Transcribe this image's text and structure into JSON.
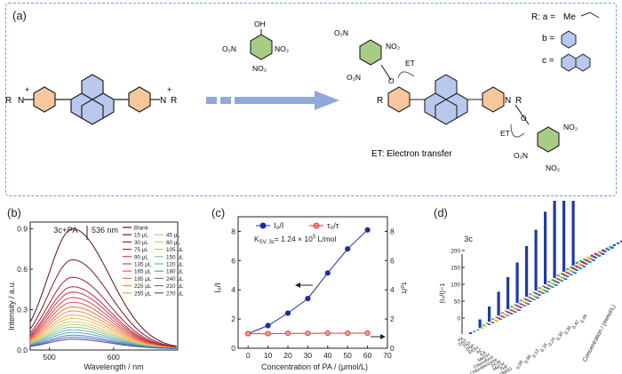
{
  "scheme": {
    "label": "(a)",
    "legend_title": "R: a =",
    "legend_a": "Me",
    "legend_b": "b =",
    "legend_c": "c =",
    "et_label": "ET",
    "et_caption": "ET:  Electron transfer",
    "r_label": "R",
    "n_label": "N",
    "plus": "+",
    "minus": "−",
    "oh": "OH",
    "no2": "NO₂",
    "o2n": "O₂N",
    "o": "O"
  },
  "panel_b": {
    "label": "(b)",
    "sample": "3c+PA",
    "peak_label": "536 nm",
    "legend_col1": [
      "Blank",
      "15 μL",
      "30 μL",
      "75 μL",
      "90 μL",
      "135 μL",
      "165 μL",
      "195 μL",
      "225 μL",
      "255 μL"
    ],
    "legend_col2": [
      "45 μL",
      "60 μL",
      "105 μL",
      "150 μL",
      "120 μL",
      "180 μL",
      "240 μL",
      "210 μL",
      "270 μL"
    ],
    "colors": [
      "#5a0f1a",
      "#7a1628",
      "#9a1f33",
      "#b52b3c",
      "#c9364a",
      "#d5434f",
      "#e2584f",
      "#ec6f4a",
      "#f28b4b",
      "#f5a24f",
      "#f2bb5c",
      "#d9c96a",
      "#b5cf7c",
      "#8dc39a",
      "#6bb4ae",
      "#5aa0c2",
      "#5a86c8",
      "#5f6cc4",
      "#4b4f9c"
    ],
    "chart_data": {
      "type": "line",
      "title": "3c+PA",
      "xlabel": "Wavelength / nm",
      "ylabel": "Intensity / a.u.",
      "xlim": [
        470,
        700
      ],
      "ylim": [
        0,
        0.95
      ],
      "xticks": [
        "500",
        "600"
      ],
      "yticks": [
        "0.0",
        "0.3",
        "0.6",
        "0.9"
      ],
      "peak_x": 536,
      "series_peaks": [
        0.89,
        0.66,
        0.53,
        0.46,
        0.42,
        0.38,
        0.345,
        0.31,
        0.28,
        0.25,
        0.225,
        0.2,
        0.18,
        0.16,
        0.14,
        0.12,
        0.1,
        0.085,
        0.07
      ]
    }
  },
  "panel_c": {
    "label": "(c)",
    "series1_label": "I₀/I",
    "series2_label": "τ₀/τ",
    "ksv_label": "K",
    "ksv_sub": "SV, 3c",
    "ksv_value": "= 1.24  × 10",
    "ksv_exp": "5",
    "ksv_unit": " L/mol",
    "chart_data": {
      "type": "line",
      "xlabel": "Concentration of PA / (μmol/L)",
      "ylabel_left": "I₀/I",
      "ylabel_right": "τ₀/τ",
      "xlim": [
        -5,
        70
      ],
      "ylim": [
        0,
        9
      ],
      "xticks": [
        0,
        10,
        20,
        30,
        40,
        50,
        60,
        70
      ],
      "yticks": [
        0,
        2,
        4,
        6,
        8
      ],
      "x": [
        0,
        10,
        20,
        30,
        40,
        50,
        60
      ],
      "series": [
        {
          "name": "I₀/I",
          "color": "#1f2e9c",
          "values": [
            1.0,
            1.55,
            2.4,
            3.4,
            5.15,
            6.8,
            8.1
          ]
        },
        {
          "name": "τ₀/τ",
          "color": "#e03a3a",
          "values": [
            1.0,
            1.0,
            1.02,
            1.02,
            1.03,
            1.03,
            1.04
          ]
        }
      ]
    }
  },
  "panel_d": {
    "label": "(d)",
    "sample": "3c",
    "ylabel": "(I₀/I)−1",
    "zlabel": "Concentration / (mmol/L)",
    "conc_labels": [
      "0.00",
      "0.06",
      "0.12",
      "0.18",
      "0.24",
      "0.30",
      "0.36",
      "0.42",
      "0.48"
    ],
    "analyte_labels": [
      "PA",
      "DNT",
      "TNT",
      "DNP",
      "EtOH",
      "AC",
      "EA",
      "MeOH",
      "Chloroform",
      "Chlorobenzene",
      "DCM",
      "MeCN",
      "THF",
      "DMSO"
    ],
    "chart_data": {
      "type": "bar",
      "title": "3c",
      "ylabel": "(I₀/I)−1",
      "yticks": [
        0,
        50,
        100,
        150,
        200
      ],
      "zlabel": "Concentration / (mmol/L)",
      "pa_values": [
        5,
        25,
        45,
        70,
        95,
        120,
        150,
        180,
        215,
        240,
        255,
        270
      ],
      "other_values_max": 6
    }
  }
}
